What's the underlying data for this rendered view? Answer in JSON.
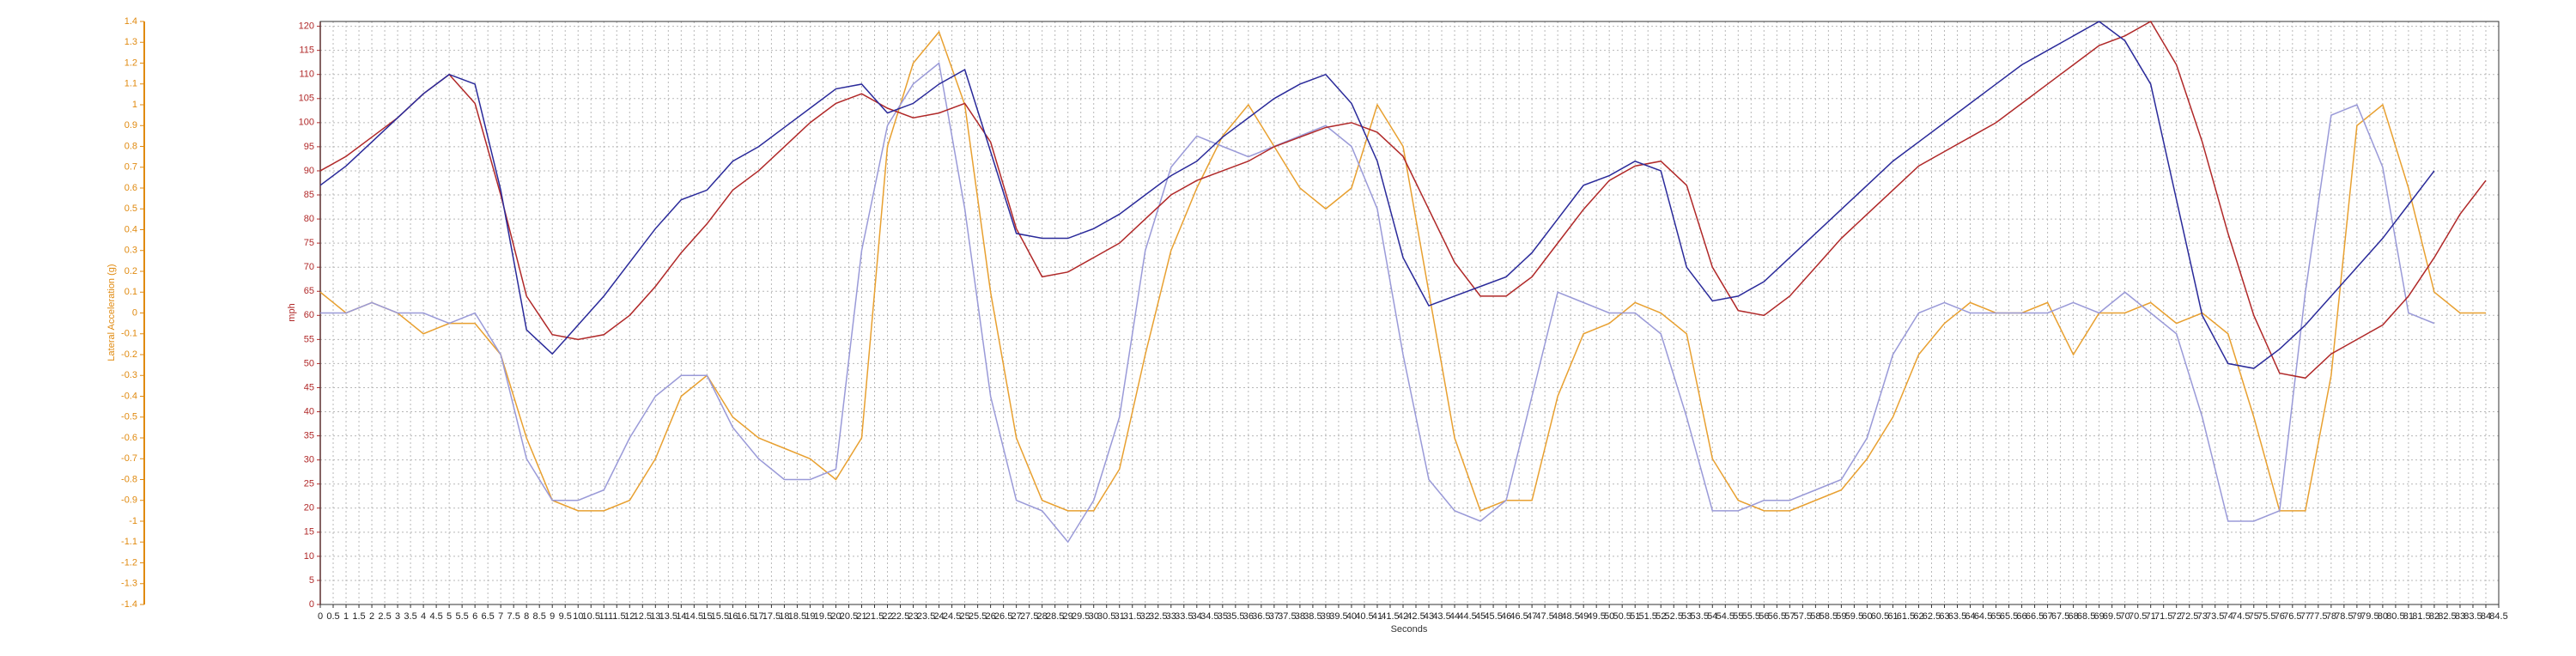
{
  "chart_data": {
    "type": "line",
    "ylabel": "mph",
    "y2label": "Lateral Acceleration (g)",
    "xlabel": "Seconds",
    "xlim": [
      0,
      84.5
    ],
    "ylim": [
      0,
      121
    ],
    "y2lim": [
      -1.4,
      1.4
    ],
    "grid": true,
    "y_color": "#b02828",
    "y2_color": "#e08a10",
    "xticks": [
      0,
      0.5,
      1,
      1.5,
      2,
      2.5,
      3,
      3.5,
      4,
      4.5,
      5,
      5.5,
      6,
      6.5,
      7,
      7.5,
      8,
      8.5,
      9,
      9.5,
      10,
      10.5,
      11,
      11.5,
      12,
      12.5,
      13,
      13.5,
      14,
      14.5,
      15,
      15.5,
      16,
      16.5,
      17,
      17.5,
      18,
      18.5,
      19,
      19.5,
      20,
      20.5,
      21,
      21.5,
      22,
      22.5,
      23,
      23.5,
      24,
      24.5,
      25,
      25.5,
      26,
      26.5,
      27,
      27.5,
      28,
      28.5,
      29,
      29.5,
      30,
      30.5,
      31,
      31.5,
      32,
      32.5,
      33,
      33.5,
      34,
      34.5,
      35,
      35.5,
      36,
      36.5,
      37,
      37.5,
      38,
      38.5,
      39,
      39.5,
      40,
      40.5,
      41,
      41.5,
      42,
      42.5,
      43,
      43.5,
      44,
      44.5,
      45,
      45.5,
      46,
      46.5,
      47,
      47.5,
      48,
      48.5,
      49,
      49.5,
      50,
      50.5,
      51,
      51.5,
      52,
      52.5,
      53,
      53.5,
      54,
      54.5,
      55,
      55.5,
      56,
      56.5,
      57,
      57.5,
      58,
      58.5,
      59,
      59.5,
      60,
      60.5,
      61,
      61.5,
      62,
      62.5,
      63,
      63.5,
      64,
      64.5,
      65,
      65.5,
      66,
      66.5,
      67,
      67.5,
      68,
      68.5,
      69,
      69.5,
      70,
      70.5,
      71,
      71.5,
      72,
      72.5,
      73,
      73.5,
      74,
      74.5,
      75,
      75.5,
      76,
      76.5,
      77,
      77.5,
      78,
      78.5,
      79,
      79.5,
      80,
      80.5,
      81,
      81.5,
      82,
      82.5,
      83,
      83.5,
      84,
      84.5
    ],
    "yticks": [
      0,
      5,
      10,
      15,
      20,
      25,
      30,
      35,
      40,
      45,
      50,
      55,
      60,
      65,
      70,
      75,
      80,
      85,
      90,
      95,
      100,
      105,
      110,
      115,
      120
    ],
    "y2ticks": [
      1.4,
      1.3,
      1.2,
      1.1,
      1,
      0.9,
      0.8,
      0.7,
      0.6,
      0.5,
      0.4,
      0.3,
      0.2,
      0.1,
      0,
      -0.1,
      -0.2,
      -0.3,
      -0.4,
      -0.5,
      -0.6,
      -0.7,
      -0.8,
      -0.9,
      -1,
      -1.1,
      -1.2,
      -1.3,
      -1.4
    ],
    "x": [
      0,
      1,
      2,
      3,
      4,
      5,
      6,
      7,
      8,
      9,
      10,
      11,
      12,
      13,
      14,
      15,
      16,
      17,
      18,
      19,
      20,
      21,
      22,
      23,
      24,
      25,
      26,
      27,
      28,
      29,
      30,
      31,
      32,
      33,
      34,
      35,
      36,
      37,
      38,
      39,
      40,
      41,
      42,
      43,
      44,
      45,
      46,
      47,
      48,
      49,
      50,
      51,
      52,
      53,
      54,
      55,
      56,
      57,
      58,
      59,
      60,
      61,
      62,
      63,
      64,
      65,
      66,
      67,
      68,
      69,
      70,
      71,
      72,
      73,
      74,
      75,
      76,
      77,
      78,
      79,
      80,
      81,
      82,
      83,
      84
    ],
    "series": [
      {
        "color": "#e8a030",
        "axis": "y2",
        "values": [
          0.1,
          0,
          0.05,
          0,
          -0.1,
          -0.05,
          -0.05,
          -0.2,
          -0.6,
          -0.9,
          -0.95,
          -0.95,
          -0.9,
          -0.7,
          -0.4,
          -0.3,
          -0.5,
          -0.6,
          -0.65,
          -0.7,
          -0.8,
          -0.6,
          0.8,
          1.2,
          1.35,
          1.0,
          0.1,
          -0.6,
          -0.9,
          -0.95,
          -0.95,
          -0.75,
          -0.2,
          0.3,
          0.6,
          0.85,
          1.0,
          0.8,
          0.6,
          0.5,
          0.6,
          1.0,
          0.8,
          0.1,
          -0.6,
          -0.95,
          -0.9,
          -0.9,
          -0.4,
          -0.1,
          -0.05,
          0.05,
          0,
          -0.1,
          -0.7,
          -0.9,
          -0.95,
          -0.95,
          -0.9,
          -0.85,
          -0.7,
          -0.5,
          -0.2,
          -0.05,
          0.05,
          0,
          0,
          0.05,
          -0.2,
          0,
          0,
          0.05,
          -0.05,
          0,
          -0.1,
          -0.5,
          -0.95,
          -0.95,
          -0.3,
          0.9,
          1.0,
          0.6,
          0.1,
          0,
          0
        ]
      },
      {
        "color": "#9a9ad8",
        "axis": "y2",
        "values": [
          0,
          0,
          0.05,
          0,
          0,
          -0.05,
          0,
          -0.2,
          -0.7,
          -0.9,
          -0.9,
          -0.85,
          -0.6,
          -0.4,
          -0.3,
          -0.3,
          -0.55,
          -0.7,
          -0.8,
          -0.8,
          -0.75,
          0.3,
          0.9,
          1.1,
          1.2,
          0.5,
          -0.4,
          -0.9,
          -0.95,
          -1.1,
          -0.9,
          -0.5,
          0.3,
          0.7,
          0.85,
          0.8,
          0.75,
          0.8,
          0.85,
          0.9,
          0.8,
          0.5,
          -0.2,
          -0.8,
          -0.95,
          -1.0,
          -0.9,
          -0.4,
          0.1,
          0.05,
          0,
          0,
          -0.1,
          -0.5,
          -0.95,
          -0.95,
          -0.9,
          -0.9,
          -0.85,
          -0.8,
          -0.6,
          -0.2,
          0,
          0.05,
          0,
          0,
          0,
          0,
          0.05,
          0,
          0.1,
          0,
          -0.1,
          -0.5,
          -1.0,
          -1.0,
          -0.95,
          0.1,
          0.95,
          1.0,
          0.7,
          0,
          -0.05,
          null,
          null
        ]
      },
      {
        "color": "#b02828",
        "values": [
          90,
          93,
          97,
          101,
          106,
          110,
          104,
          85,
          64,
          56,
          55,
          56,
          60,
          66,
          73,
          79,
          86,
          90,
          95,
          100,
          104,
          106,
          103,
          101,
          102,
          104,
          96,
          78,
          68,
          69,
          72,
          75,
          80,
          85,
          88,
          90,
          92,
          95,
          97,
          99,
          100,
          98,
          93,
          82,
          71,
          64,
          64,
          68,
          75,
          82,
          88,
          91,
          92,
          87,
          70,
          61,
          60,
          64,
          70,
          76,
          81,
          86,
          91,
          94,
          97,
          100,
          104,
          108,
          112,
          116,
          118,
          121,
          112,
          96,
          77,
          60,
          48,
          47,
          52,
          55,
          58,
          64,
          72,
          81,
          88
        ]
      },
      {
        "color": "#2a2a9a",
        "values": [
          87,
          91,
          96,
          101,
          106,
          110,
          108,
          86,
          57,
          52,
          58,
          64,
          71,
          78,
          84,
          86,
          92,
          95,
          99,
          103,
          107,
          108,
          102,
          104,
          108,
          111,
          94,
          77,
          76,
          76,
          78,
          81,
          85,
          89,
          92,
          97,
          101,
          105,
          108,
          110,
          104,
          92,
          72,
          62,
          64,
          66,
          68,
          73,
          80,
          87,
          89,
          92,
          90,
          70,
          63,
          64,
          67,
          72,
          77,
          82,
          87,
          92,
          96,
          100,
          104,
          108,
          112,
          115,
          118,
          121,
          117,
          108,
          84,
          60,
          50,
          49,
          53,
          58,
          64,
          70,
          76,
          83,
          90,
          null,
          null
        ]
      }
    ]
  }
}
